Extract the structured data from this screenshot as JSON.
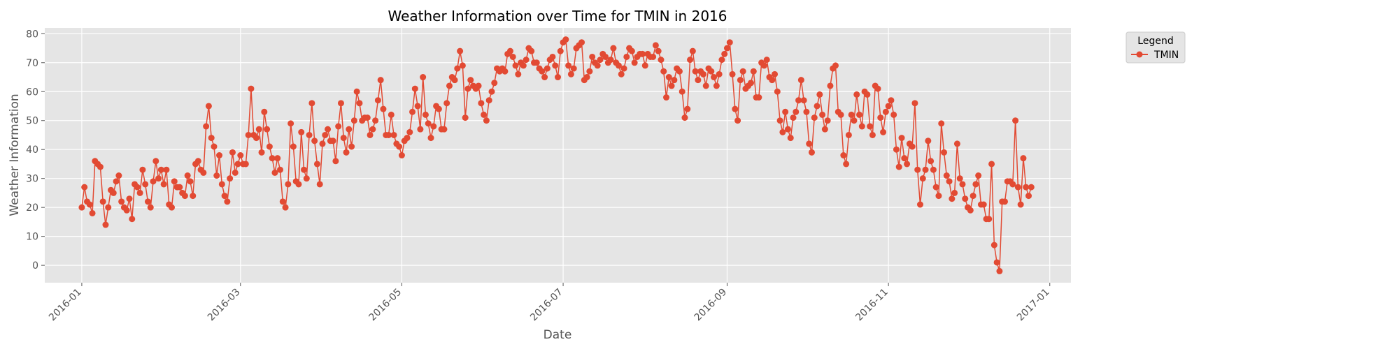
{
  "chart_data": {
    "type": "line",
    "title": "Weather Information over Time for TMIN in 2016",
    "xlabel": "Date",
    "ylabel": "Weather Information",
    "x_range": [
      "2015-12-18",
      "2017-01-09"
    ],
    "ylim": [
      -6,
      82
    ],
    "yticks": [
      0,
      10,
      20,
      30,
      40,
      50,
      60,
      70,
      80
    ],
    "xticks": [
      "2016-01",
      "2016-03",
      "2016-05",
      "2016-07",
      "2016-09",
      "2016-11",
      "2017-01"
    ],
    "xtick_dates": [
      "2016-01-01",
      "2016-03-01",
      "2016-05-01",
      "2016-07-01",
      "2016-09-01",
      "2016-11-01",
      "2017-01-01"
    ],
    "grid": true,
    "legend": {
      "title": "Legend",
      "placement": "outside-top-right"
    },
    "colors": {
      "series": "#E24A33",
      "plot_bg": "#E5E5E5",
      "grid": "#FFFFFF"
    },
    "series": [
      {
        "name": "TMIN",
        "start_date": "2016-01-01",
        "values": [
          20,
          27,
          22,
          21,
          18,
          36,
          35,
          34,
          22,
          14,
          20,
          26,
          25,
          29,
          31,
          22,
          20,
          19,
          23,
          16,
          28,
          27,
          25,
          33,
          28,
          22,
          20,
          29,
          36,
          30,
          33,
          28,
          33,
          21,
          20,
          29,
          27,
          27,
          25,
          24,
          31,
          29,
          24,
          35,
          36,
          33,
          32,
          48,
          55,
          44,
          41,
          31,
          38,
          28,
          24,
          22,
          30,
          39,
          32,
          35,
          38,
          35,
          35,
          45,
          61,
          45,
          44,
          47,
          39,
          53,
          47,
          41,
          37,
          32,
          37,
          33,
          22,
          20,
          28,
          49,
          41,
          29,
          28,
          46,
          33,
          30,
          45,
          56,
          43,
          35,
          28,
          42,
          45,
          47,
          43,
          43,
          36,
          48,
          56,
          44,
          39,
          47,
          41,
          50,
          60,
          56,
          50,
          51,
          51,
          45,
          47,
          50,
          57,
          64,
          54,
          45,
          45,
          52,
          45,
          42,
          41,
          38,
          43,
          44,
          46,
          53,
          61,
          55,
          47,
          65,
          52,
          49,
          44,
          48,
          55,
          54,
          47,
          47,
          56,
          62,
          65,
          64,
          68,
          74,
          69,
          51,
          61,
          64,
          62,
          61,
          62,
          56,
          52,
          50,
          57,
          60,
          63,
          68,
          67,
          68,
          67,
          73,
          74,
          72,
          69,
          66,
          70,
          69,
          71,
          75,
          74,
          70,
          70,
          68,
          67,
          65,
          68,
          71,
          72,
          69,
          65,
          74,
          77,
          78,
          69,
          66,
          68,
          75,
          76,
          77,
          64,
          65,
          67,
          72,
          70,
          69,
          71,
          73,
          72,
          70,
          71,
          75,
          70,
          69,
          66,
          68,
          72,
          75,
          74,
          70,
          72,
          73,
          73,
          69,
          73,
          72,
          72,
          76,
          74,
          71,
          67,
          58,
          65,
          62,
          64,
          68,
          67,
          60,
          51,
          54,
          71,
          74,
          67,
          64,
          67,
          66,
          62,
          68,
          67,
          65,
          62,
          66,
          71,
          73,
          75,
          77,
          66,
          54,
          50,
          64,
          67,
          61,
          62,
          63,
          67,
          58,
          58,
          70,
          69,
          71,
          65,
          64,
          66,
          60,
          50,
          46,
          53,
          47,
          44,
          51,
          53,
          57,
          64,
          57,
          53,
          42,
          39,
          51,
          55,
          59,
          52,
          47,
          50,
          62,
          68,
          69,
          53,
          52,
          38,
          35,
          45,
          52,
          50,
          59,
          52,
          48,
          60,
          59,
          48,
          45,
          62,
          61,
          51,
          46,
          53,
          55,
          57,
          52,
          40,
          34,
          44,
          37,
          35,
          42,
          41,
          56,
          33,
          21,
          30,
          33,
          43,
          36,
          33,
          27,
          24,
          49,
          39,
          31,
          29,
          23,
          25,
          42,
          30,
          28,
          23,
          20,
          19,
          24,
          28,
          31,
          21,
          21,
          16,
          16,
          35,
          7,
          1,
          -2,
          22,
          22,
          29,
          29,
          28,
          50,
          27,
          21,
          37,
          27,
          24,
          27
        ]
      }
    ]
  }
}
